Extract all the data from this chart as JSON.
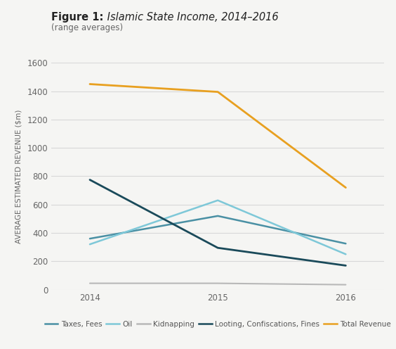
{
  "title_bold": "Figure 1:",
  "title_italic": " Islamic State Income, 2014–2016",
  "subtitle": "(range averages)",
  "years": [
    2014,
    2015,
    2016
  ],
  "series": {
    "Taxes, Fees": {
      "values": [
        360,
        520,
        325
      ],
      "color": "#4a90a4",
      "linewidth": 1.8
    },
    "Oil": {
      "values": [
        320,
        630,
        250
      ],
      "color": "#7ec8d8",
      "linewidth": 1.8
    },
    "Kidnapping": {
      "values": [
        45,
        45,
        35
      ],
      "color": "#b8b8b8",
      "linewidth": 1.5
    },
    "Looting, Confiscations, Fines": {
      "values": [
        775,
        295,
        170
      ],
      "color": "#1a4a5a",
      "linewidth": 2.0
    },
    "Total Revenue": {
      "values": [
        1450,
        1395,
        720
      ],
      "color": "#e8a020",
      "linewidth": 2.0
    }
  },
  "ylabel": "AVERAGE ESTIMATED REVENUE ($m)",
  "ylim": [
    0,
    1600
  ],
  "yticks": [
    0,
    200,
    400,
    600,
    800,
    1000,
    1200,
    1400,
    1600
  ],
  "xlim": [
    2013.7,
    2016.3
  ],
  "xticks": [
    2014,
    2015,
    2016
  ],
  "background_color": "#f5f5f3",
  "plot_bg_color": "#f5f5f3",
  "grid_color": "#d8d8d8",
  "title_fontsize": 10.5,
  "subtitle_fontsize": 8.5,
  "axis_label_fontsize": 7.5,
  "tick_fontsize": 8.5,
  "legend_fontsize": 7.5
}
